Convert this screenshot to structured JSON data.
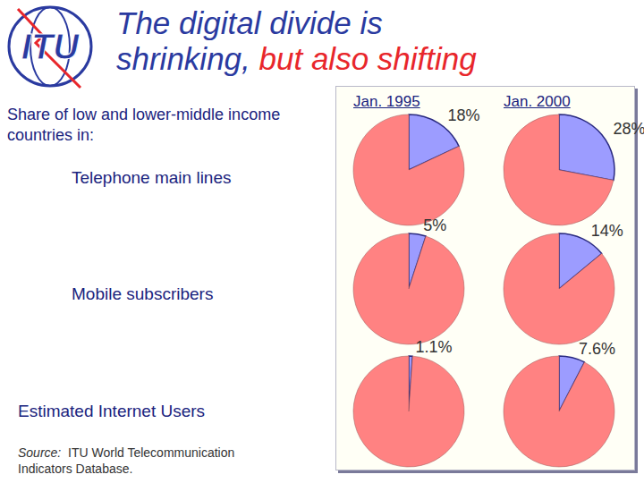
{
  "logo": "ITU",
  "title": [
    [
      {
        "text": "The digital divide is",
        "color": "#2a3aa0"
      }
    ],
    [
      {
        "text": "shrinking,",
        "color": "#2a3aa0"
      },
      {
        "text": " but also shifting",
        "color": "#e8262b"
      }
    ]
  ],
  "subtitle": "Share of low and lower-middle income countries in:",
  "columns": [
    "Jan. 1995",
    "Jan. 2000"
  ],
  "rows": [
    "Telephone main lines",
    "Mobile subscribers",
    "Estimated Internet Users"
  ],
  "source": {
    "label": "Source:",
    "text": "ITU World Telecommunication Indicators Database."
  },
  "chart_data": [
    {
      "type": "pie",
      "values": [
        18,
        82
      ],
      "value_labels": [
        "18%",
        null
      ],
      "colors": [
        "#9c9cff",
        "#ff8282"
      ],
      "data_labels": true
    },
    {
      "type": "pie",
      "values": [
        28,
        72
      ],
      "value_labels": [
        "28%",
        null
      ],
      "colors": [
        "#9c9cff",
        "#ff8282"
      ],
      "data_labels": true
    },
    {
      "type": "pie",
      "values": [
        5,
        95
      ],
      "value_labels": [
        "5%",
        null
      ],
      "colors": [
        "#9c9cff",
        "#ff8282"
      ],
      "data_labels": true
    },
    {
      "type": "pie",
      "values": [
        14,
        86
      ],
      "value_labels": [
        "14%",
        null
      ],
      "colors": [
        "#9c9cff",
        "#ff8282"
      ],
      "data_labels": true
    },
    {
      "type": "pie",
      "values": [
        1.1,
        98.9
      ],
      "value_labels": [
        "1.1%",
        null
      ],
      "colors": [
        "#9c9cff",
        "#ff8282"
      ],
      "data_labels": true
    },
    {
      "type": "pie",
      "values": [
        7.6,
        92.4
      ],
      "value_labels": [
        "7.6%",
        null
      ],
      "colors": [
        "#9c9cff",
        "#ff8282"
      ],
      "data_labels": true
    }
  ]
}
